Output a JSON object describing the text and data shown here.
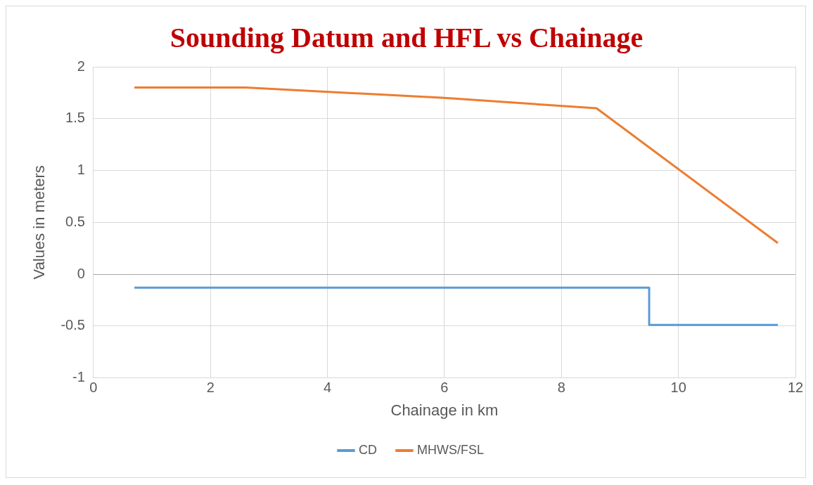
{
  "chart_data": {
    "type": "line",
    "title": "Sounding Datum and HFL vs Chainage",
    "xlabel": "Chainage in km",
    "ylabel": "Values in meters",
    "series": [
      {
        "name": "CD",
        "color": "#5b9bd5",
        "x": [
          0.7,
          9.5,
          9.5,
          11.7
        ],
        "values": [
          -0.13,
          -0.13,
          -0.49,
          -0.49
        ]
      },
      {
        "name": "MHWS/FSL",
        "color": "#ed7d31",
        "x": [
          0.7,
          2.6,
          6,
          8.6,
          11.7
        ],
        "values": [
          1.8,
          1.8,
          1.7,
          1.6,
          0.3
        ]
      }
    ],
    "xlim": [
      0,
      12
    ],
    "xticks": [
      0,
      2,
      4,
      6,
      8,
      10,
      12
    ],
    "ylim": [
      -1,
      2
    ],
    "yticks": [
      -1,
      -0.5,
      0,
      0.5,
      1,
      1.5,
      2
    ],
    "grid": true,
    "legend": "bottom",
    "marker": "none",
    "line_style": "solid"
  }
}
